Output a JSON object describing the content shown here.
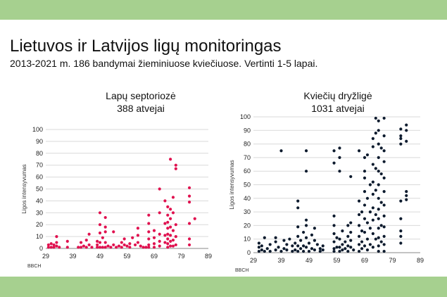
{
  "header": {
    "title": "Lietuvos ir Latvijos ligų monitoringas",
    "subtitle": "2013-2021 m. 186 bandymai žieminiuose kviečiuose. Vertinti 1-5 lapai."
  },
  "colors": {
    "band": "#a6d08f",
    "series_left": "#e0114f",
    "series_right": "#0d1b2e",
    "grid": "#d9d9d9"
  },
  "chart_data": [
    {
      "type": "scatter",
      "title": "Lapų septoriozė",
      "subtitle": "388 atvejai",
      "xlabel": "BBCH",
      "ylabel": "Ligos intensyvumas",
      "xlim": [
        29,
        89
      ],
      "ylim": [
        0,
        100
      ],
      "xticks": [
        29,
        39,
        49,
        59,
        69,
        79,
        89
      ],
      "yticks": [
        0,
        10,
        20,
        30,
        40,
        50,
        60,
        70,
        80,
        90,
        100
      ],
      "grid": "horizontal",
      "series": [
        {
          "points": [
            [
              30,
              1
            ],
            [
              30,
              3
            ],
            [
              31,
              1
            ],
            [
              31,
              4
            ],
            [
              32,
              1
            ],
            [
              32,
              3
            ],
            [
              33,
              10
            ],
            [
              33,
              5
            ],
            [
              33,
              2
            ],
            [
              34,
              1
            ],
            [
              37,
              1
            ],
            [
              37,
              6
            ],
            [
              41,
              1
            ],
            [
              42,
              1
            ],
            [
              42,
              5
            ],
            [
              43,
              2
            ],
            [
              44,
              1
            ],
            [
              44,
              7
            ],
            [
              45,
              12
            ],
            [
              45,
              3
            ],
            [
              46,
              1
            ],
            [
              48,
              1
            ],
            [
              48,
              3
            ],
            [
              48,
              6
            ],
            [
              49,
              30
            ],
            [
              49,
              20
            ],
            [
              49,
              13
            ],
            [
              49,
              5
            ],
            [
              49,
              1
            ],
            [
              50,
              1
            ],
            [
              50,
              9
            ],
            [
              51,
              26
            ],
            [
              51,
              18
            ],
            [
              51,
              14
            ],
            [
              51,
              5
            ],
            [
              51,
              1
            ],
            [
              52,
              2
            ],
            [
              53,
              1
            ],
            [
              54,
              3
            ],
            [
              54,
              14
            ],
            [
              55,
              1
            ],
            [
              56,
              2
            ],
            [
              57,
              5
            ],
            [
              57,
              1
            ],
            [
              58,
              8
            ],
            [
              58,
              3
            ],
            [
              59,
              2
            ],
            [
              60,
              1
            ],
            [
              60,
              4
            ],
            [
              61,
              9
            ],
            [
              62,
              3
            ],
            [
              63,
              17
            ],
            [
              63,
              11
            ],
            [
              63,
              5
            ],
            [
              64,
              2
            ],
            [
              65,
              1
            ],
            [
              66,
              1
            ],
            [
              67,
              28
            ],
            [
              67,
              21
            ],
            [
              67,
              14
            ],
            [
              67,
              8
            ],
            [
              67,
              3
            ],
            [
              67,
              1
            ],
            [
              69,
              15
            ],
            [
              69,
              9
            ],
            [
              69,
              4
            ],
            [
              69,
              1
            ],
            [
              71,
              50
            ],
            [
              71,
              30
            ],
            [
              71,
              12
            ],
            [
              71,
              6
            ],
            [
              71,
              2
            ],
            [
              73,
              40
            ],
            [
              73,
              21
            ],
            [
              73,
              11
            ],
            [
              73,
              5
            ],
            [
              74,
              35
            ],
            [
              74,
              28
            ],
            [
              74,
              22
            ],
            [
              74,
              17
            ],
            [
              74,
              12
            ],
            [
              74,
              8
            ],
            [
              74,
              4
            ],
            [
              74,
              1
            ],
            [
              75,
              75
            ],
            [
              75,
              33
            ],
            [
              75,
              25
            ],
            [
              75,
              18
            ],
            [
              75,
              11
            ],
            [
              75,
              6
            ],
            [
              75,
              2
            ],
            [
              76,
              43
            ],
            [
              76,
              30
            ],
            [
              76,
              15
            ],
            [
              76,
              7
            ],
            [
              76,
              2
            ],
            [
              77,
              70
            ],
            [
              77,
              67
            ],
            [
              77,
              20
            ],
            [
              77,
              10
            ],
            [
              77,
              3
            ],
            [
              82,
              51
            ],
            [
              82,
              44
            ],
            [
              82,
              39
            ],
            [
              82,
              21
            ],
            [
              82,
              8
            ],
            [
              82,
              3
            ],
            [
              84,
              25
            ]
          ]
        }
      ]
    },
    {
      "type": "scatter",
      "title": "Kviečių dryžligė",
      "subtitle": "1031 atvejai",
      "xlabel": "BBCH",
      "ylabel": "Ligos intensyvumas",
      "xlim": [
        29,
        89
      ],
      "ylim": [
        0,
        100
      ],
      "xticks": [
        29,
        39,
        49,
        59,
        69,
        79,
        89
      ],
      "yticks": [
        0,
        10,
        20,
        30,
        40,
        50,
        60,
        70,
        80,
        90,
        100
      ],
      "grid": "horizontal",
      "series": [
        {
          "points": [
            [
              31,
              1
            ],
            [
              31,
              4
            ],
            [
              31,
              7
            ],
            [
              32,
              2
            ],
            [
              32,
              5
            ],
            [
              33,
              1
            ],
            [
              33,
              11
            ],
            [
              34,
              3
            ],
            [
              35,
              1
            ],
            [
              35,
              6
            ],
            [
              37,
              2
            ],
            [
              37,
              8
            ],
            [
              37,
              11
            ],
            [
              38,
              4
            ],
            [
              39,
              75
            ],
            [
              39,
              1
            ],
            [
              40,
              3
            ],
            [
              40,
              9
            ],
            [
              41,
              2
            ],
            [
              41,
              6
            ],
            [
              42,
              10
            ],
            [
              43,
              1
            ],
            [
              43,
              5
            ],
            [
              44,
              2
            ],
            [
              44,
              7
            ],
            [
              45,
              38
            ],
            [
              45,
              33
            ],
            [
              45,
              19
            ],
            [
              45,
              12
            ],
            [
              45,
              5
            ],
            [
              45,
              1
            ],
            [
              46,
              3
            ],
            [
              46,
              9
            ],
            [
              47,
              15
            ],
            [
              47,
              5
            ],
            [
              47,
              1
            ],
            [
              48,
              24
            ],
            [
              48,
              60
            ],
            [
              48,
              75
            ],
            [
              48,
              20
            ],
            [
              48,
              11
            ],
            [
              48,
              4
            ],
            [
              49,
              1
            ],
            [
              49,
              7
            ],
            [
              50,
              13
            ],
            [
              50,
              3
            ],
            [
              51,
              18
            ],
            [
              51,
              9
            ],
            [
              51,
              2
            ],
            [
              52,
              6
            ],
            [
              53,
              3
            ],
            [
              53,
              1
            ],
            [
              54,
              5
            ],
            [
              54,
              2
            ],
            [
              58,
              75
            ],
            [
              58,
              66
            ],
            [
              58,
              27
            ],
            [
              58,
              20
            ],
            [
              58,
              14
            ],
            [
              58,
              8
            ],
            [
              58,
              3
            ],
            [
              58,
              1
            ],
            [
              59,
              11
            ],
            [
              59,
              4
            ],
            [
              60,
              77
            ],
            [
              60,
              70
            ],
            [
              60,
              60
            ],
            [
              60,
              10
            ],
            [
              60,
              4
            ],
            [
              60,
              1
            ],
            [
              61,
              16
            ],
            [
              61,
              6
            ],
            [
              61,
              2
            ],
            [
              62,
              8
            ],
            [
              62,
              3
            ],
            [
              63,
              20
            ],
            [
              63,
              12
            ],
            [
              63,
              5
            ],
            [
              63,
              1
            ],
            [
              64,
              56
            ],
            [
              64,
              22
            ],
            [
              64,
              15
            ],
            [
              64,
              9
            ],
            [
              64,
              4
            ],
            [
              65,
              2
            ],
            [
              67,
              75
            ],
            [
              67,
              38
            ],
            [
              67,
              28
            ],
            [
              67,
              20
            ],
            [
              67,
              12
            ],
            [
              67,
              6
            ],
            [
              67,
              1
            ],
            [
              68,
              30
            ],
            [
              68,
              16
            ],
            [
              68,
              8
            ],
            [
              68,
              3
            ],
            [
              69,
              70
            ],
            [
              69,
              60
            ],
            [
              69,
              55
            ],
            [
              69,
              45
            ],
            [
              69,
              35
            ],
            [
              69,
              25
            ],
            [
              69,
              15
            ],
            [
              69,
              5
            ],
            [
              70,
              72
            ],
            [
              70,
              40
            ],
            [
              70,
              22
            ],
            [
              70,
              10
            ],
            [
              70,
              2
            ],
            [
              71,
              50
            ],
            [
              71,
              30
            ],
            [
              71,
              18
            ],
            [
              71,
              6
            ],
            [
              72,
              84
            ],
            [
              72,
              78
            ],
            [
              72,
              65
            ],
            [
              72,
              52
            ],
            [
              72,
              43
            ],
            [
              72,
              33
            ],
            [
              72,
              24
            ],
            [
              72,
              14
            ],
            [
              72,
              4
            ],
            [
              73,
              99
            ],
            [
              73,
              88
            ],
            [
              73,
              62
            ],
            [
              73,
              46
            ],
            [
              73,
              28
            ],
            [
              73,
              10
            ],
            [
              74,
              97
            ],
            [
              74,
              90
            ],
            [
              74,
              80
            ],
            [
              74,
              70
            ],
            [
              74,
              60
            ],
            [
              74,
              50
            ],
            [
              74,
              40
            ],
            [
              74,
              32
            ],
            [
              74,
              25
            ],
            [
              74,
              18
            ],
            [
              74,
              11
            ],
            [
              74,
              5
            ],
            [
              74,
              1
            ],
            [
              75,
              77
            ],
            [
              75,
              58
            ],
            [
              75,
              37
            ],
            [
              75,
              20
            ],
            [
              75,
              8
            ],
            [
              76,
              99
            ],
            [
              76,
              86
            ],
            [
              76,
              75
            ],
            [
              76,
              67
            ],
            [
              76,
              55
            ],
            [
              76,
              45
            ],
            [
              76,
              35
            ],
            [
              76,
              27
            ],
            [
              76,
              19
            ],
            [
              76,
              12
            ],
            [
              76,
              6
            ],
            [
              76,
              1
            ],
            [
              82,
              91
            ],
            [
              82,
              86
            ],
            [
              82,
              84
            ],
            [
              82,
              80
            ],
            [
              82,
              38
            ],
            [
              82,
              25
            ],
            [
              82,
              16
            ],
            [
              82,
              12
            ],
            [
              82,
              7
            ],
            [
              84,
              94
            ],
            [
              84,
              90
            ],
            [
              84,
              82
            ],
            [
              84,
              45
            ],
            [
              84,
              42
            ],
            [
              84,
              39
            ]
          ]
        }
      ]
    }
  ]
}
